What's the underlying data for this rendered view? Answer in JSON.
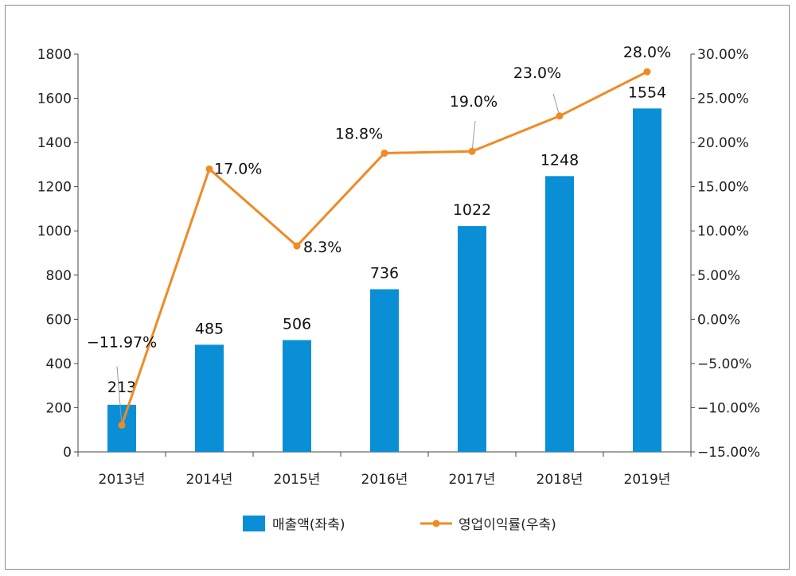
{
  "chart_data": {
    "type": "bar+line",
    "categories": [
      "2013년",
      "2014년",
      "2015년",
      "2016년",
      "2017년",
      "2018년",
      "2019년"
    ],
    "series": [
      {
        "name": "매출액(좌축)",
        "type": "bar",
        "axis": "left",
        "values": [
          213,
          485,
          506,
          736,
          1022,
          1248,
          1554
        ],
        "labels": [
          "213",
          "485",
          "506",
          "736",
          "1022",
          "1248",
          "1554"
        ],
        "color": "#0A8FD6"
      },
      {
        "name": "영업이익률(우축)",
        "type": "line",
        "axis": "right",
        "values": [
          -11.97,
          17.0,
          8.3,
          18.8,
          19.0,
          23.0,
          28.0
        ],
        "labels": [
          "−11.97%",
          "17.0%",
          "8.3%",
          "18.8%",
          "19.0%",
          "23.0%",
          "28.0%"
        ],
        "color": "#F08A24"
      }
    ],
    "left_axis": {
      "range": [
        0,
        1800
      ],
      "ticks": [
        0,
        200,
        400,
        600,
        800,
        1000,
        1200,
        1400,
        1600,
        1800
      ],
      "tick_labels": [
        "0",
        "200",
        "400",
        "600",
        "800",
        "1000",
        "1200",
        "1400",
        "1600",
        "1800"
      ]
    },
    "right_axis": {
      "range": [
        -15,
        30
      ],
      "ticks": [
        -15,
        -10,
        -5,
        0,
        5,
        10,
        15,
        20,
        25,
        30
      ],
      "tick_labels": [
        "−15.00%",
        "−10.00%",
        "−5.00%",
        "0.00%",
        "5.00%",
        "10.00%",
        "15.00%",
        "20.00%",
        "25.00%",
        "30.00%"
      ]
    },
    "legend": {
      "position": "bottom",
      "items": [
        "매출액(좌축)",
        "영업이익률(우축)"
      ]
    },
    "grid": false
  }
}
